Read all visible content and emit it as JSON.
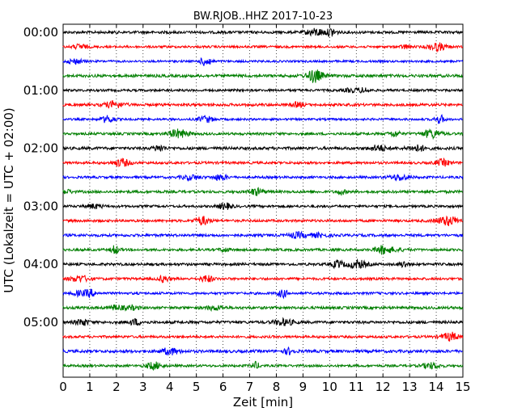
{
  "chart_data": {
    "type": "line",
    "title": "BW.RJOB..HHZ 2017-10-23",
    "xlabel": "Zeit  [min]",
    "ylabel": "UTC (Lokalzeit = UTC + 02:00)",
    "xlim": [
      0,
      15
    ],
    "x_ticks": [
      "0",
      "1",
      "2",
      "3",
      "4",
      "5",
      "6",
      "7",
      "8",
      "9",
      "10",
      "11",
      "12",
      "13",
      "14",
      "15"
    ],
    "y_tick_labels": [
      "00:00",
      "01:00",
      "02:00",
      "03:00",
      "04:00",
      "05:00"
    ],
    "grid": "vertical dotted",
    "trace_colors": [
      "#000000",
      "#ff0000",
      "#0000ff",
      "#007f00"
    ],
    "traces_per_hour": 4,
    "minutes_per_trace": 15,
    "trace_count": 24
  }
}
